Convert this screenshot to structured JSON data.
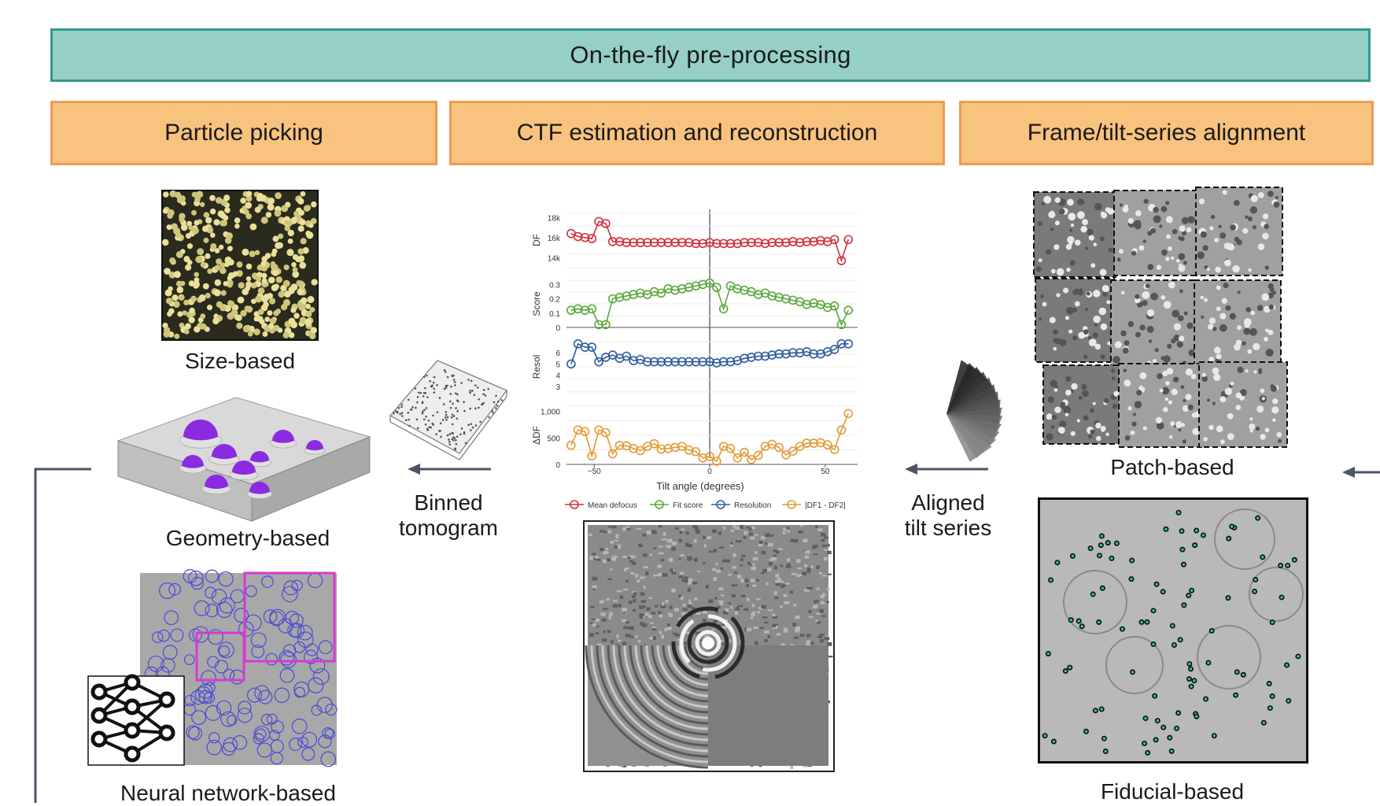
{
  "banner": {
    "title": "On-the-fly pre-processing"
  },
  "sections": {
    "particle_picking": "Particle picking",
    "ctf": "CTF estimation and reconstruction",
    "alignment": "Frame/tilt-series alignment"
  },
  "labels": {
    "size_based": "Size-based",
    "geometry_based": "Geometry-based",
    "neural_network_based": "Neural network-based",
    "binned_tomogram": [
      "Binned",
      "tomogram"
    ],
    "aligned_tilt_series": [
      "Aligned",
      "tilt series"
    ],
    "patch_based": "Patch-based",
    "fiducial_based": "Fiducial-based"
  },
  "colors": {
    "banner_fill": "#95cfc6",
    "banner_border": "#2f9a8c",
    "section_fill": "#f8c27f",
    "section_border": "#ef9b4f",
    "defocus": "#d0303c",
    "fit_score": "#5aa83a",
    "resolution": "#2e5c9e",
    "df_diff": "#e39a35",
    "arrow": "#4a5565",
    "particle_purple": "#8a2be2",
    "nn_box": "#d63ad6",
    "fiducial": "#2ec4a0"
  },
  "chart_data": {
    "type": "line",
    "xlabel": "Tilt angle (degrees)",
    "x_ticks": [
      "−50",
      "0",
      "50"
    ],
    "xlim": [
      -62,
      64
    ],
    "x": [
      -60,
      -57,
      -54,
      -51,
      -48,
      -45,
      -42,
      -39,
      -36,
      -33,
      -30,
      -27,
      -24,
      -21,
      -18,
      -15,
      -12,
      -9,
      -6,
      -3,
      0,
      3,
      6,
      9,
      12,
      15,
      18,
      21,
      24,
      27,
      30,
      33,
      36,
      39,
      42,
      45,
      48,
      51,
      54,
      57,
      60
    ],
    "series": [
      {
        "name": "Mean defocus",
        "ylabel": "DF",
        "y_ticks": [
          "18k",
          "16k",
          "14k"
        ],
        "ylim": [
          13000,
          18500
        ],
        "values": [
          16400,
          16100,
          16000,
          15900,
          17600,
          17400,
          15600,
          15600,
          15500,
          15500,
          15500,
          15500,
          15500,
          15500,
          15500,
          15500,
          15500,
          15500,
          15400,
          15400,
          15500,
          15400,
          15400,
          15400,
          15400,
          15500,
          15500,
          15500,
          15400,
          15500,
          15500,
          15500,
          15600,
          15500,
          15600,
          15600,
          15700,
          15600,
          15800,
          13700,
          15800
        ]
      },
      {
        "name": "Fit score",
        "ylabel": "Score",
        "y_ticks": [
          "0.3",
          "0.2",
          "0.1",
          "0"
        ],
        "ylim": [
          0,
          0.33
        ],
        "values": [
          0.12,
          0.13,
          0.12,
          0.13,
          0.02,
          0.02,
          0.2,
          0.21,
          0.22,
          0.23,
          0.24,
          0.23,
          0.25,
          0.24,
          0.27,
          0.26,
          0.27,
          0.28,
          0.29,
          0.3,
          0.31,
          0.28,
          0.13,
          0.29,
          0.27,
          0.26,
          0.25,
          0.23,
          0.24,
          0.22,
          0.21,
          0.2,
          0.19,
          0.18,
          0.16,
          0.17,
          0.16,
          0.14,
          0.15,
          0.02,
          0.12
        ]
      },
      {
        "name": "Resolution",
        "ylabel": "Resol",
        "y_ticks": [
          "6",
          "5",
          "4",
          "3"
        ],
        "ylim": [
          2.5,
          7
        ],
        "values": [
          5,
          6.8,
          6.5,
          6.5,
          5.2,
          5.6,
          5.8,
          5.5,
          5.7,
          5.3,
          5.4,
          5.2,
          5.2,
          5.2,
          5.2,
          5.2,
          5.2,
          5.2,
          5.2,
          5.2,
          5.2,
          5.1,
          5.2,
          5.2,
          5.3,
          5.5,
          5.6,
          5.7,
          5.7,
          5.8,
          5.9,
          5.9,
          6,
          6,
          6.1,
          5.9,
          5.9,
          6.1,
          6.3,
          6.8,
          6.8
        ]
      },
      {
        "name": "|DF1 - DF2|",
        "ylabel": "ΔDF",
        "y_ticks": [
          "1,000",
          "500",
          "0"
        ],
        "ylim": [
          0,
          1100
        ],
        "values": [
          360,
          650,
          620,
          160,
          650,
          600,
          200,
          360,
          350,
          300,
          260,
          340,
          390,
          290,
          300,
          320,
          340,
          270,
          240,
          120,
          150,
          60,
          340,
          300,
          120,
          230,
          90,
          170,
          340,
          380,
          320,
          180,
          250,
          340,
          400,
          400,
          410,
          370,
          280,
          650,
          960
        ]
      }
    ],
    "legend_position": "bottom"
  }
}
